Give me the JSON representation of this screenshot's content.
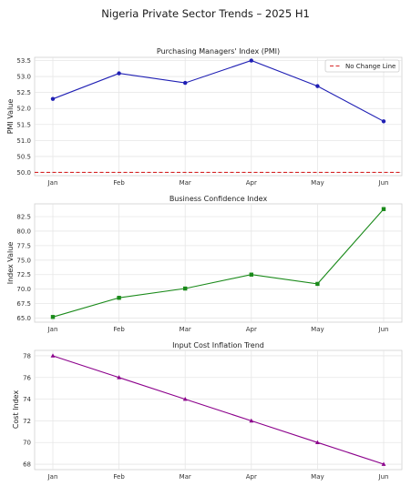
{
  "title": "Nigeria Private Sector Trends – 2025 H1",
  "chart_data": [
    {
      "type": "line",
      "title": "Purchasing Managers' Index (PMI)",
      "xlabel": "",
      "ylabel": "PMI Value",
      "categories": [
        "Jan",
        "Feb",
        "Mar",
        "Apr",
        "May",
        "Jun"
      ],
      "series": [
        {
          "values": [
            52.3,
            53.1,
            52.8,
            53.5,
            52.7,
            51.6
          ],
          "color": "#1f1fb4",
          "marker": "circle"
        }
      ],
      "reference_line": {
        "name": "No Change Line",
        "value": 50.0,
        "color": "#d62728",
        "style": "dashed"
      },
      "ylim": [
        49.9,
        53.6
      ],
      "yticks": [
        50.0,
        50.5,
        51.0,
        51.5,
        52.0,
        52.5,
        53.0,
        53.5
      ],
      "ytick_labels": [
        "50.0",
        "50.5",
        "51.0",
        "51.5",
        "52.0",
        "52.5",
        "53.0",
        "53.5"
      ],
      "legend": "top-right",
      "grid": true
    },
    {
      "type": "line",
      "title": "Business Confidence Index",
      "xlabel": "",
      "ylabel": "Index Value",
      "categories": [
        "Jan",
        "Feb",
        "Mar",
        "Apr",
        "May",
        "Jun"
      ],
      "series": [
        {
          "values": [
            65.2,
            68.5,
            70.1,
            72.5,
            70.9,
            83.8
          ],
          "color": "#1a8a1a",
          "marker": "square"
        }
      ],
      "ylim": [
        64.3,
        84.7
      ],
      "yticks": [
        65.0,
        67.5,
        70.0,
        72.5,
        75.0,
        77.5,
        80.0,
        82.5
      ],
      "ytick_labels": [
        "65.0",
        "67.5",
        "70.0",
        "72.5",
        "75.0",
        "77.5",
        "80.0",
        "82.5"
      ],
      "grid": true
    },
    {
      "type": "line",
      "title": "Input Cost Inflation Trend",
      "xlabel": "",
      "ylabel": "Cost Index",
      "categories": [
        "Jan",
        "Feb",
        "Mar",
        "Apr",
        "May",
        "Jun"
      ],
      "series": [
        {
          "values": [
            78.0,
            76.0,
            74.0,
            72.0,
            70.0,
            68.0
          ],
          "color": "#8b008b",
          "marker": "triangle"
        }
      ],
      "ylim": [
        67.5,
        78.5
      ],
      "yticks": [
        68,
        70,
        72,
        74,
        76,
        78
      ],
      "ytick_labels": [
        "68",
        "70",
        "72",
        "74",
        "76",
        "78"
      ],
      "grid": true
    }
  ]
}
